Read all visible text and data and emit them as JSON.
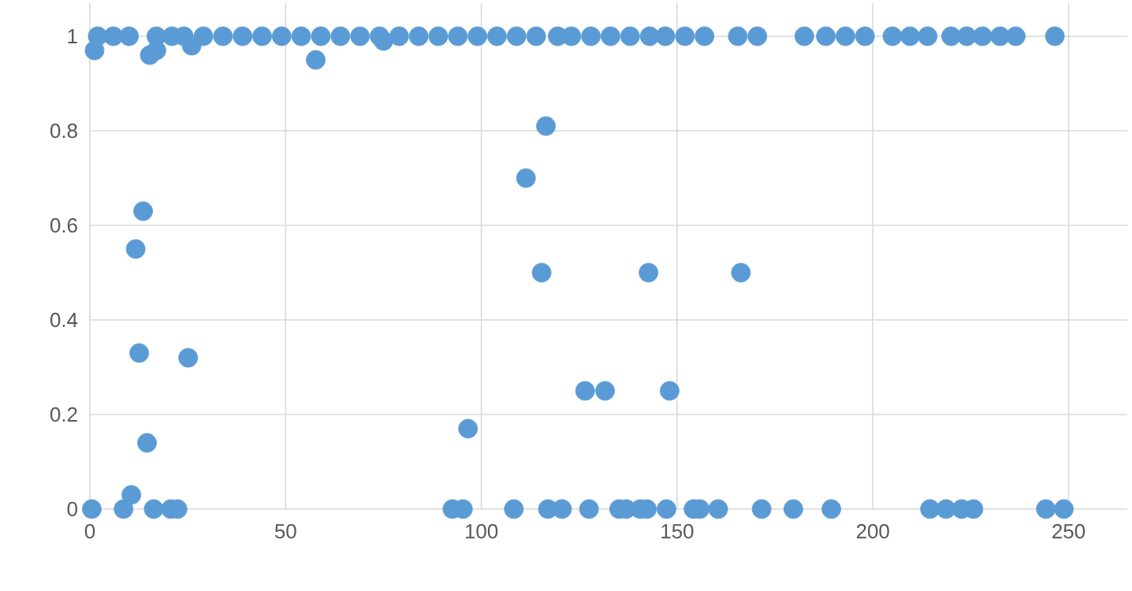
{
  "chart_data": {
    "type": "scatter",
    "marker": "circle",
    "grid": true,
    "xlim": [
      0,
      265
    ],
    "ylim": [
      0,
      1.07
    ],
    "xticks": [
      0,
      50,
      100,
      150,
      200,
      250
    ],
    "yticks": [
      0,
      0.2,
      0.4,
      0.6,
      0.8,
      1
    ],
    "series": [
      {
        "color": "#5b9bd5",
        "x": [
          2,
          6,
          10,
          17,
          21,
          24,
          29,
          34,
          39,
          44,
          49,
          54,
          59,
          64,
          69,
          74,
          79,
          84,
          89,
          94,
          99,
          104,
          109,
          114,
          119.5,
          123,
          128,
          133,
          138,
          143,
          147,
          152,
          157,
          165.5,
          170.5,
          182.5,
          188,
          193,
          198,
          205,
          209.5,
          214,
          220,
          224,
          228,
          232.5,
          236.5,
          246.5,
          0.5,
          1.2,
          8.6,
          10.6,
          11.7,
          12.6,
          13.6,
          14.6,
          15.3,
          16.3,
          17,
          20.7,
          22.4,
          25.1,
          26,
          57.7,
          75,
          92.6,
          95.3,
          96.6,
          108.3,
          111.4,
          115.4,
          116.5,
          117,
          120.6,
          126.5,
          127.5,
          131.6,
          135.2,
          137,
          140.6,
          142.3,
          142.7,
          147.3,
          148.1,
          154.2,
          155.8,
          160.5,
          166.3,
          171.6,
          179.7,
          189.4,
          214.6,
          218.7,
          222.7,
          225.7,
          244.2,
          248.8
        ],
        "values": [
          1,
          1,
          1,
          1,
          1,
          1,
          1,
          1,
          1,
          1,
          1,
          1,
          1,
          1,
          1,
          1,
          1,
          1,
          1,
          1,
          1,
          1,
          1,
          1,
          1,
          1,
          1,
          1,
          1,
          1,
          1,
          1,
          1,
          1,
          1,
          1,
          1,
          1,
          1,
          1,
          1,
          1,
          1,
          1,
          1,
          1,
          1,
          1,
          0,
          0.97,
          0,
          0.03,
          0.55,
          0.33,
          0.63,
          0.14,
          0.96,
          0,
          0.97,
          0,
          0,
          0.32,
          0.98,
          0.95,
          0.99,
          0,
          0,
          0.17,
          0,
          0.7,
          0.5,
          0.81,
          0,
          0,
          0.25,
          0,
          0.25,
          0,
          0,
          0,
          0,
          0.5,
          0,
          0.25,
          0,
          0,
          0,
          0.5,
          0,
          0,
          0,
          0,
          0,
          0,
          0,
          0,
          0
        ]
      }
    ]
  }
}
